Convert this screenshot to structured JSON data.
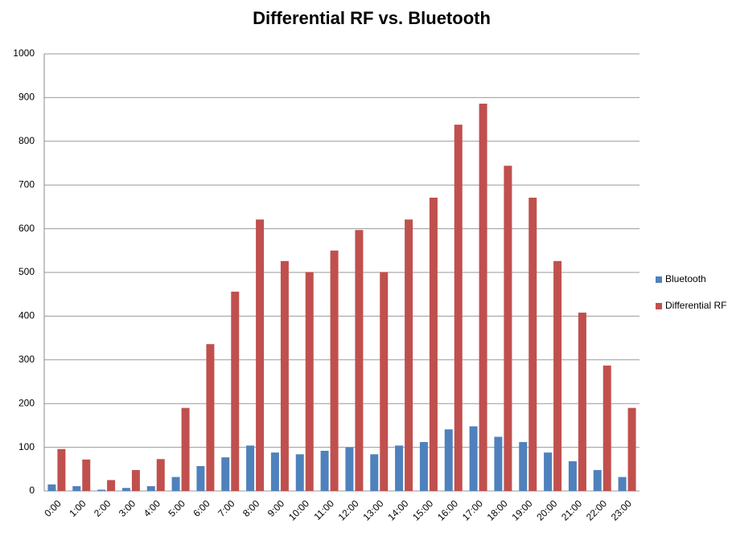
{
  "chart_data": {
    "type": "bar",
    "title": "Differential RF vs. Bluetooth",
    "categories": [
      "0:00",
      "1:00",
      "2:00",
      "3:00",
      "4:00",
      "5:00",
      "6:00",
      "7:00",
      "8:00",
      "9:00",
      "10:00",
      "11:00",
      "12:00",
      "13:00",
      "14:00",
      "15:00",
      "16:00",
      "17:00",
      "18:00",
      "19:00",
      "20:00",
      "21:00",
      "22:00",
      "23:00"
    ],
    "series": [
      {
        "name": "Bluetooth",
        "color": "#4f81bd",
        "values": [
          15,
          11,
          3,
          7,
          11,
          32,
          57,
          77,
          104,
          88,
          84,
          92,
          100,
          84,
          104,
          112,
          141,
          148,
          124,
          112,
          88,
          68,
          48,
          32
        ]
      },
      {
        "name": "Differential RF",
        "color": "#c0504d",
        "values": [
          96,
          72,
          25,
          48,
          73,
          190,
          336,
          456,
          621,
          526,
          501,
          550,
          597,
          501,
          621,
          671,
          838,
          886,
          744,
          671,
          526,
          408,
          287,
          190
        ]
      }
    ],
    "ylim": [
      0,
      1000
    ],
    "yticks": [
      0,
      100,
      200,
      300,
      400,
      500,
      600,
      700,
      800,
      900,
      1000
    ],
    "grid": true,
    "legend": "right"
  }
}
